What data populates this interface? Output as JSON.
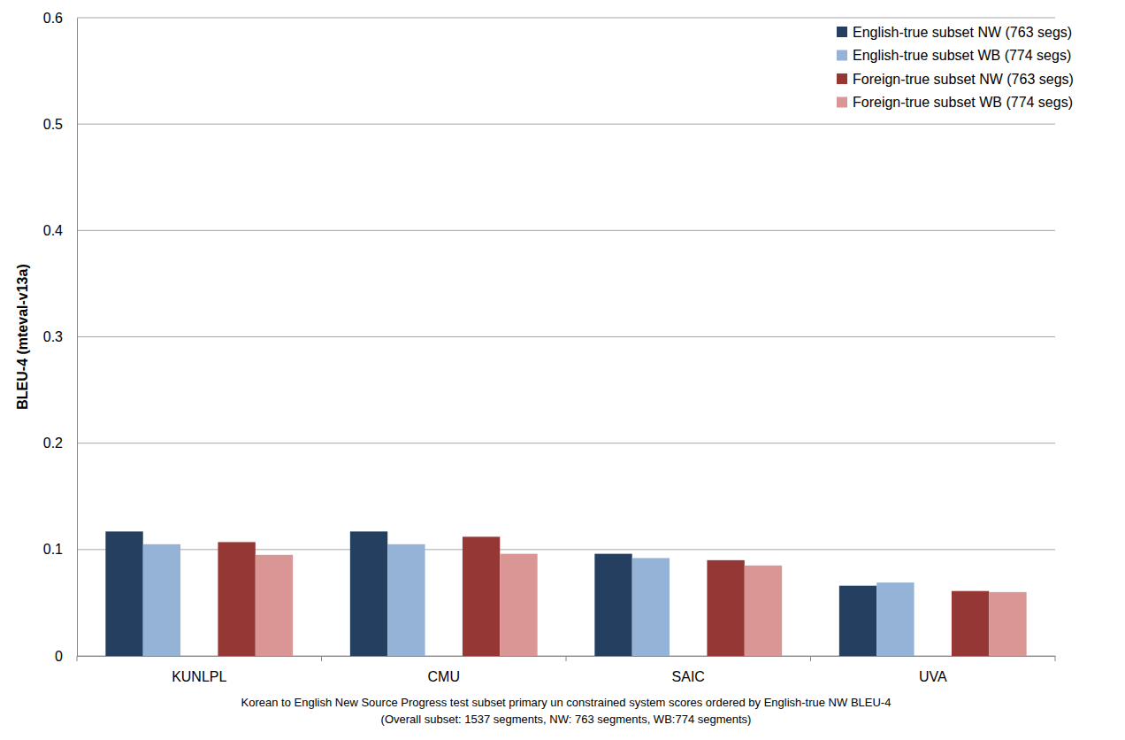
{
  "chart_data": {
    "type": "bar",
    "y_label": "BLEU-4 (mteval-v13a)",
    "caption": [
      "Korean to English New Source Progress test subset primary un constrained system scores ordered by English-true NW BLEU-4",
      "(Overall subset: 1537 segments, NW: 763 segments, WB:774 segments)"
    ],
    "categories": [
      "KUNLPL",
      "CMU",
      "SAIC",
      "UVA"
    ],
    "series": [
      {
        "name": "English-true subset NW (763 segs)",
        "color": "#243f60",
        "values": [
          0.117,
          0.117,
          0.096,
          0.066
        ]
      },
      {
        "name": "English-true subset WB (774 segs)",
        "color": "#95b3d7",
        "values": [
          0.105,
          0.105,
          0.092,
          0.069
        ]
      },
      {
        "name": "Foreign-true subset NW (763 segs)",
        "color": "#953735",
        "values": [
          0.107,
          0.112,
          0.09,
          0.061
        ]
      },
      {
        "name": "Foreign-true subset WB (774 segs)",
        "color": "#d99694",
        "values": [
          0.095,
          0.096,
          0.085,
          0.06
        ]
      }
    ],
    "ylim": [
      0,
      0.6
    ],
    "yticks": [
      0,
      0.1,
      0.2,
      0.3,
      0.4,
      0.5,
      0.6
    ],
    "grid": true,
    "legend": "top-right"
  }
}
